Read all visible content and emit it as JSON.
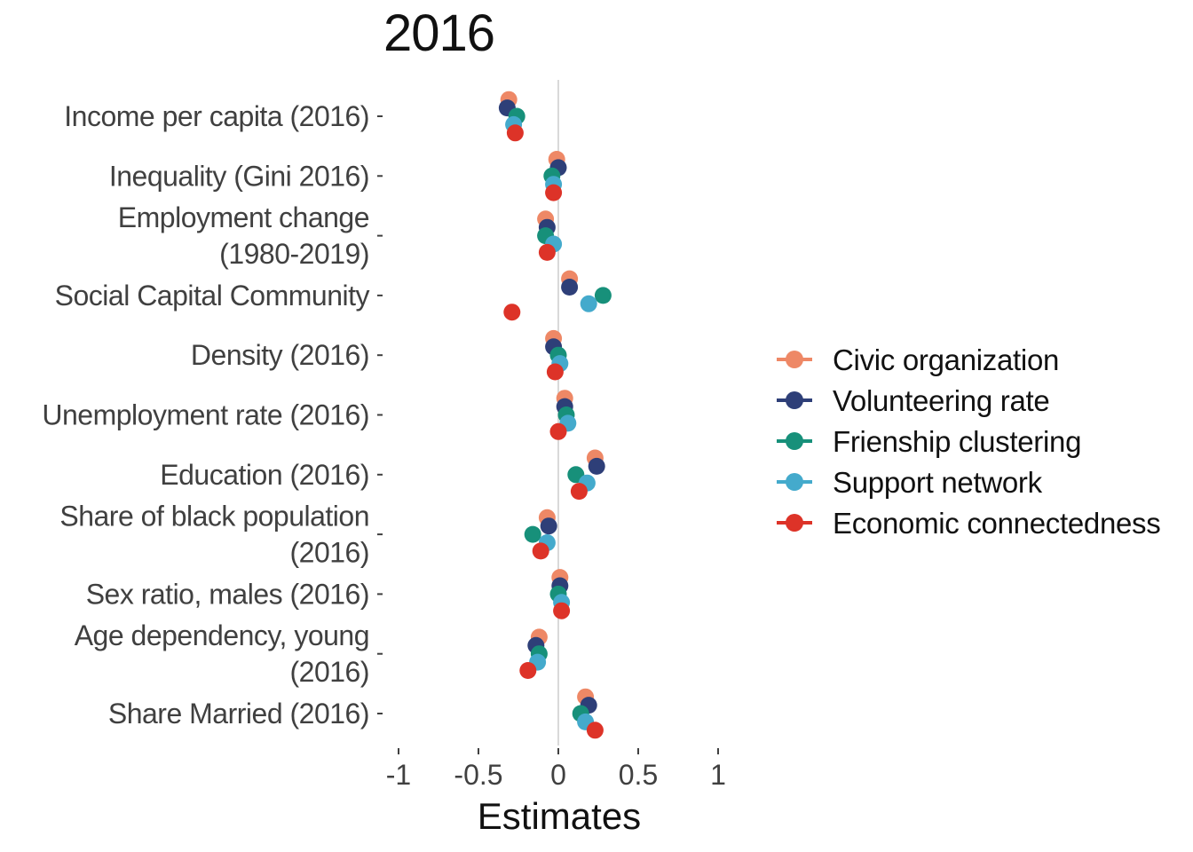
{
  "chart_data": {
    "type": "scatter",
    "title": "2016",
    "xlabel": "Estimates",
    "ylabel": "",
    "xlim": [
      -1,
      1
    ],
    "x_ticks": [
      -1,
      -0.5,
      0,
      0.5,
      1
    ],
    "x_tick_labels": [
      "-1",
      "-0.5",
      "0",
      "0.5",
      "1"
    ],
    "grid": false,
    "legend_position": "right",
    "categories": [
      {
        "label": [
          "Income per capita (2016)"
        ]
      },
      {
        "label": [
          "Inequality (Gini 2016)"
        ]
      },
      {
        "label": [
          "Employment change",
          "(1980-2019)"
        ]
      },
      {
        "label": [
          "Social Capital Community"
        ]
      },
      {
        "label": [
          "Density (2016)"
        ]
      },
      {
        "label": [
          "Unemployment rate (2016)"
        ]
      },
      {
        "label": [
          "Education (2016)"
        ]
      },
      {
        "label": [
          "Share of black population",
          "(2016)"
        ]
      },
      {
        "label": [
          "Sex ratio, males (2016)"
        ]
      },
      {
        "label": [
          "Age dependency, young",
          "(2016)"
        ]
      },
      {
        "label": [
          "Share Married (2016)"
        ]
      }
    ],
    "series": [
      {
        "name": "Civic organization",
        "color": "#EE8866",
        "values": [
          -0.31,
          -0.01,
          -0.08,
          0.07,
          -0.03,
          0.04,
          0.23,
          -0.07,
          0.01,
          -0.12,
          0.17
        ]
      },
      {
        "name": "Volunteering rate",
        "color": "#2E3F78",
        "values": [
          -0.32,
          0.0,
          -0.07,
          0.07,
          -0.03,
          0.04,
          0.24,
          -0.06,
          0.01,
          -0.14,
          0.19
        ]
      },
      {
        "name": "Frienship clustering",
        "color": "#17907A",
        "values": [
          -0.26,
          -0.04,
          -0.08,
          0.28,
          0.0,
          0.05,
          0.11,
          -0.16,
          0.0,
          -0.12,
          0.14
        ]
      },
      {
        "name": "Support network",
        "color": "#44AACC",
        "values": [
          -0.28,
          -0.03,
          -0.03,
          0.19,
          0.01,
          0.06,
          0.18,
          -0.07,
          0.02,
          -0.13,
          0.17
        ]
      },
      {
        "name": "Economic connectedness",
        "color": "#DD3328",
        "values": [
          -0.27,
          -0.03,
          -0.07,
          -0.29,
          -0.02,
          0.0,
          0.13,
          -0.11,
          0.02,
          -0.19,
          0.23
        ]
      }
    ]
  }
}
